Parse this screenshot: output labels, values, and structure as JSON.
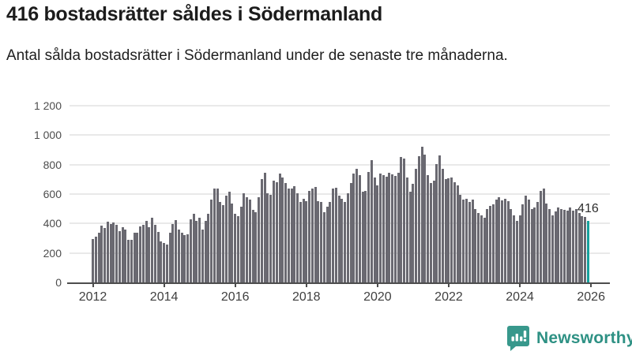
{
  "header": {
    "title": "416 bostadsrätter såldes i Södermanland",
    "subtitle": "Antal sålda bostadsrätter i Södermanland under de senaste tre månaderna."
  },
  "chart_data": {
    "type": "bar",
    "title": "416 bostadsrätter såldes i Södermanland",
    "xlabel": "",
    "ylabel": "",
    "ylim": [
      0,
      1200
    ],
    "grid": true,
    "y_ticks": [
      0,
      200,
      400,
      600,
      800,
      1000,
      1200
    ],
    "y_tick_labels": [
      "0",
      "200",
      "400",
      "600",
      "800",
      "1 000",
      "1 200"
    ],
    "x_tick_years": [
      2012,
      2014,
      2016,
      2018,
      2020,
      2022,
      2024,
      2026
    ],
    "x_start": {
      "year": 2012,
      "month": 1
    },
    "x_frequency": "monthly",
    "series": [
      {
        "name": "Antal sålda bostadsrätter under de senaste tre månaderna",
        "values": [
          295,
          310,
          335,
          385,
          370,
          415,
          395,
          405,
          390,
          350,
          375,
          360,
          290,
          290,
          335,
          340,
          380,
          390,
          420,
          375,
          440,
          390,
          345,
          280,
          270,
          255,
          340,
          395,
          425,
          360,
          340,
          320,
          325,
          430,
          465,
          420,
          440,
          360,
          420,
          465,
          560,
          635,
          640,
          545,
          525,
          590,
          615,
          535,
          465,
          450,
          515,
          605,
          580,
          565,
          495,
          475,
          580,
          700,
          745,
          605,
          595,
          690,
          680,
          740,
          715,
          675,
          640,
          635,
          655,
          605,
          545,
          570,
          550,
          620,
          635,
          650,
          550,
          545,
          475,
          515,
          545,
          635,
          645,
          590,
          570,
          545,
          605,
          675,
          740,
          770,
          730,
          615,
          620,
          750,
          830,
          715,
          660,
          740,
          730,
          720,
          745,
          735,
          725,
          745,
          850,
          840,
          715,
          615,
          670,
          770,
          855,
          920,
          870,
          730,
          675,
          690,
          805,
          860,
          770,
          700,
          705,
          710,
          680,
          660,
          595,
          560,
          570,
          545,
          560,
          500,
          470,
          455,
          440,
          500,
          520,
          530,
          565,
          580,
          555,
          570,
          550,
          500,
          455,
          420,
          455,
          530,
          590,
          560,
          500,
          510,
          545,
          620,
          635,
          535,
          500,
          455,
          480,
          510,
          500,
          495,
          490,
          510,
          485,
          500,
          470,
          450,
          445,
          416
        ]
      }
    ],
    "highlight": {
      "index": 167,
      "label": "416"
    },
    "colors": {
      "bar": "#6a6971",
      "highlight_bar": "#16a09c",
      "gridline": "#e9e9e9",
      "axis": "#4d4d4d"
    }
  },
  "branding": {
    "logo_text": "Newsworthy",
    "logo_icon": "newsworthy-bubble-chart-icon",
    "logo_color": "#38988c",
    "text_color": "#2e9184"
  }
}
